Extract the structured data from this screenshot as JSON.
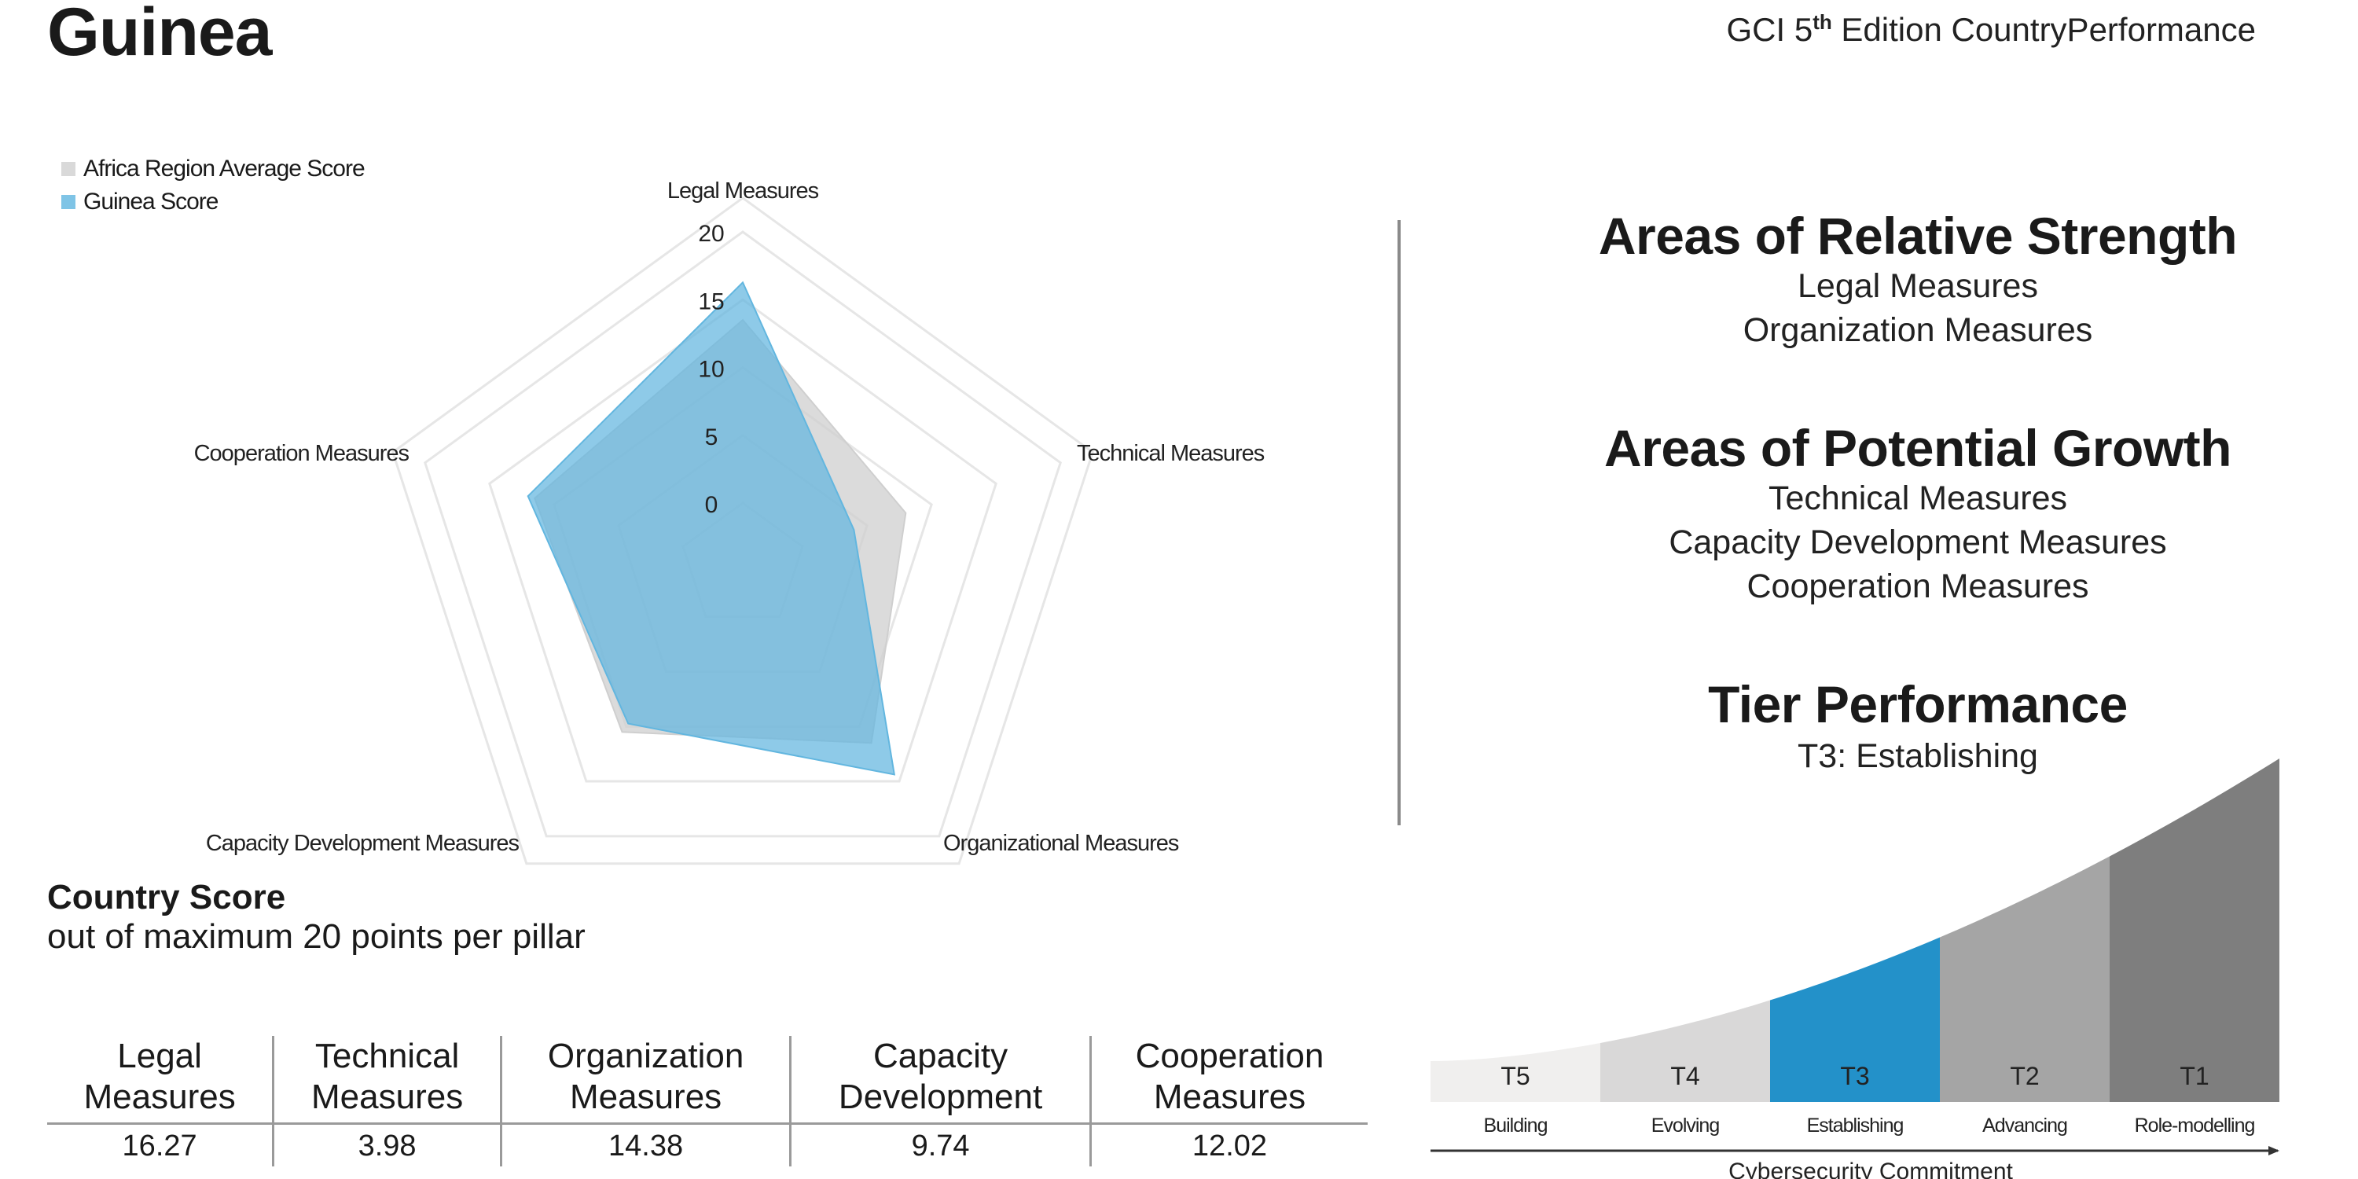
{
  "country": "Guinea",
  "edition": {
    "prefix": "GCI 5",
    "sup": "th",
    "suffix": " Edition CountryPerformance"
  },
  "legend": [
    {
      "label": "Africa Region Average Score",
      "color": "#d9d9d9"
    },
    {
      "label": "Guinea Score",
      "color": "#7fc4e6"
    }
  ],
  "chart_data": {
    "type": "radar",
    "axes": [
      "Legal Measures",
      "Technical Measures",
      "Organizational Measures",
      "Capacity Development Measures",
      "Cooperation Measures"
    ],
    "ticks": [
      0,
      5,
      10,
      15,
      20
    ],
    "range": [
      0,
      20
    ],
    "series": [
      {
        "name": "Africa Region Average Score",
        "values": [
          13.5,
          8.0,
          11.5,
          10.5,
          11.5
        ],
        "color": "#cfcfcf"
      },
      {
        "name": "Guinea Score",
        "values": [
          16.27,
          3.98,
          14.38,
          9.74,
          12.02
        ],
        "color": "#62b6df"
      }
    ]
  },
  "strength": {
    "title": "Areas of Relative Strength",
    "items": [
      "Legal Measures",
      "Organization Measures"
    ]
  },
  "growth": {
    "title": "Areas of Potential Growth",
    "items": [
      "Technical Measures",
      "Capacity Development Measures",
      "Cooperation Measures"
    ]
  },
  "tier": {
    "title": "Tier Performance",
    "value": "T3: Establishing",
    "tiers": [
      {
        "code": "T5",
        "name": "Building",
        "color": "#f0efee"
      },
      {
        "code": "T4",
        "name": "Evolving",
        "color": "#d9d8d8"
      },
      {
        "code": "T3",
        "name": "Establishing",
        "color": "#2391c9"
      },
      {
        "code": "T2",
        "name": "Advancing",
        "color": "#a5a5a5"
      },
      {
        "code": "T1",
        "name": "Role-modelling",
        "color": "#7e7e7e"
      }
    ],
    "axis_label": "Cybersecurity Commitment"
  },
  "score": {
    "title": "Country Score",
    "subtitle": "out of maximum 20 points per pillar",
    "columns": [
      {
        "line1": "Legal",
        "line2": "Measures",
        "value": "16.27"
      },
      {
        "line1": "Technical",
        "line2": "Measures",
        "value": "3.98"
      },
      {
        "line1": "Organization",
        "line2": "Measures",
        "value": "14.38"
      },
      {
        "line1": "Capacity",
        "line2": "Development",
        "value": "9.74"
      },
      {
        "line1": "Cooperation",
        "line2": "Measures",
        "value": "12.02"
      }
    ]
  }
}
